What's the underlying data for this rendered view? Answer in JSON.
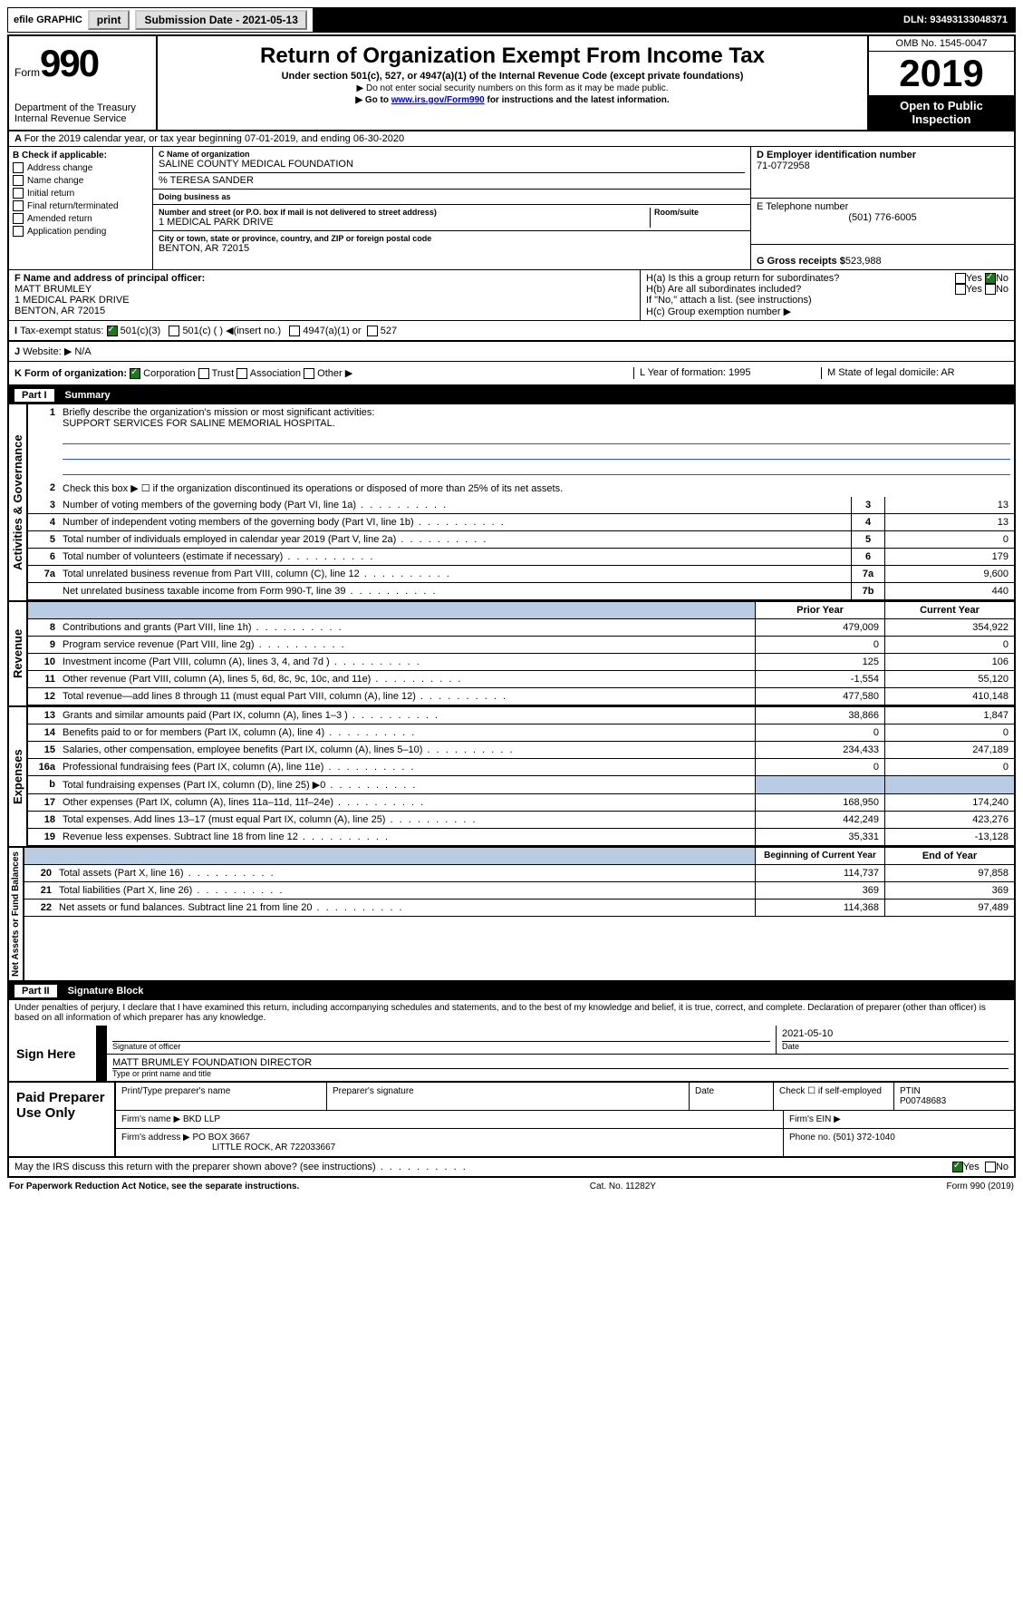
{
  "topbar": {
    "efile": "efile GRAPHIC",
    "print": "print",
    "subdate_label": "Submission Date - 2021-05-13",
    "dln": "DLN: 93493133048371"
  },
  "header": {
    "form": "Form",
    "num": "990",
    "dept": "Department of the Treasury",
    "irs": "Internal Revenue Service",
    "title": "Return of Organization Exempt From Income Tax",
    "sub": "Under section 501(c), 527, or 4947(a)(1) of the Internal Revenue Code (except private foundations)",
    "nossn": "▶ Do not enter social security numbers on this form as it may be made public.",
    "goto": "▶ Go to www.irs.gov/Form990 for instructions and the latest information.",
    "goto_link": "www.irs.gov/Form990",
    "omb": "OMB No. 1545-0047",
    "year": "2019",
    "open": "Open to Public",
    "inspect": "Inspection"
  },
  "rowA": {
    "text": "For the 2019 calendar year, or tax year beginning 07-01-2019",
    "end": ", and ending 06-30-2020"
  },
  "colB": {
    "label": "B Check if applicable:",
    "items": [
      "Address change",
      "Name change",
      "Initial return",
      "Final return/terminated",
      "Amended return",
      "Application pending"
    ]
  },
  "colC": {
    "name_label": "C Name of organization",
    "name": "SALINE COUNTY MEDICAL FOUNDATION",
    "care": "% TERESA SANDER",
    "dba_label": "Doing business as",
    "addr_label": "Number and street (or P.O. box if mail is not delivered to street address)",
    "room": "Room/suite",
    "addr": "1 MEDICAL PARK DRIVE",
    "city_label": "City or town, state or province, country, and ZIP or foreign postal code",
    "city": "BENTON, AR  72015"
  },
  "colD": {
    "label": "D Employer identification number",
    "ein": "71-0772958",
    "tel_label": "E Telephone number",
    "tel": "(501) 776-6005",
    "gross_label": "G Gross receipts $",
    "gross": "523,988"
  },
  "rowF": {
    "label": "F  Name and address of principal officer:",
    "name": "MATT BRUMLEY",
    "addr1": "1 MEDICAL PARK DRIVE",
    "addr2": "BENTON, AR  72015"
  },
  "rowH": {
    "a": "H(a)  Is this a group return for subordinates?",
    "b": "H(b)  Are all subordinates included?",
    "note": "If \"No,\" attach a list. (see instructions)",
    "c": "H(c)  Group exemption number ▶",
    "yes": "Yes",
    "no": "No"
  },
  "rowI": {
    "label": "Tax-exempt status:",
    "o1": "501(c)(3)",
    "o2": "501(c) (  ) ◀(insert no.)",
    "o3": "4947(a)(1) or",
    "o4": "527"
  },
  "rowJ": {
    "label": "Website: ▶",
    "val": "N/A"
  },
  "rowK": {
    "label": "K Form of organization:",
    "o1": "Corporation",
    "o2": "Trust",
    "o3": "Association",
    "o4": "Other ▶",
    "l": "L Year of formation: 1995",
    "m": "M State of legal domicile: AR"
  },
  "part1": {
    "header": "Part I",
    "title": "Summary",
    "q1": "Briefly describe the organization's mission or most significant activities:",
    "q1val": "SUPPORT SERVICES FOR SALINE MEMORIAL HOSPITAL.",
    "q2": "Check this box ▶ ☐  if the organization discontinued its operations or disposed of more than 25% of its net assets.",
    "rows": [
      {
        "n": "3",
        "t": "Number of voting members of the governing body (Part VI, line 1a)",
        "b": "3",
        "v": "13"
      },
      {
        "n": "4",
        "t": "Number of independent voting members of the governing body (Part VI, line 1b)",
        "b": "4",
        "v": "13"
      },
      {
        "n": "5",
        "t": "Total number of individuals employed in calendar year 2019 (Part V, line 2a)",
        "b": "5",
        "v": "0"
      },
      {
        "n": "6",
        "t": "Total number of volunteers (estimate if necessary)",
        "b": "6",
        "v": "179"
      },
      {
        "n": "7a",
        "t": "Total unrelated business revenue from Part VIII, column (C), line 12",
        "b": "7a",
        "v": "9,600"
      },
      {
        "n": "",
        "t": "Net unrelated business taxable income from Form 990-T, line 39",
        "b": "7b",
        "v": "440"
      }
    ],
    "hdr_prior": "Prior Year",
    "hdr_curr": "Current Year",
    "rev": [
      {
        "n": "8",
        "t": "Contributions and grants (Part VIII, line 1h)",
        "p": "479,009",
        "c": "354,922"
      },
      {
        "n": "9",
        "t": "Program service revenue (Part VIII, line 2g)",
        "p": "0",
        "c": "0"
      },
      {
        "n": "10",
        "t": "Investment income (Part VIII, column (A), lines 3, 4, and 7d )",
        "p": "125",
        "c": "106"
      },
      {
        "n": "11",
        "t": "Other revenue (Part VIII, column (A), lines 5, 6d, 8c, 9c, 10c, and 11e)",
        "p": "-1,554",
        "c": "55,120"
      },
      {
        "n": "12",
        "t": "Total revenue—add lines 8 through 11 (must equal Part VIII, column (A), line 12)",
        "p": "477,580",
        "c": "410,148"
      }
    ],
    "exp": [
      {
        "n": "13",
        "t": "Grants and similar amounts paid (Part IX, column (A), lines 1–3 )",
        "p": "38,866",
        "c": "1,847"
      },
      {
        "n": "14",
        "t": "Benefits paid to or for members (Part IX, column (A), line 4)",
        "p": "0",
        "c": "0"
      },
      {
        "n": "15",
        "t": "Salaries, other compensation, employee benefits (Part IX, column (A), lines 5–10)",
        "p": "234,433",
        "c": "247,189"
      },
      {
        "n": "16a",
        "t": "Professional fundraising fees (Part IX, column (A), line 11e)",
        "p": "0",
        "c": "0"
      },
      {
        "n": "b",
        "t": "Total fundraising expenses (Part IX, column (D), line 25) ▶0",
        "p": "",
        "c": "",
        "shade": true
      },
      {
        "n": "17",
        "t": "Other expenses (Part IX, column (A), lines 11a–11d, 11f–24e)",
        "p": "168,950",
        "c": "174,240"
      },
      {
        "n": "18",
        "t": "Total expenses. Add lines 13–17 (must equal Part IX, column (A), line 25)",
        "p": "442,249",
        "c": "423,276"
      },
      {
        "n": "19",
        "t": "Revenue less expenses. Subtract line 18 from line 12",
        "p": "35,331",
        "c": "-13,128"
      }
    ],
    "hdr_beg": "Beginning of Current Year",
    "hdr_end": "End of Year",
    "net": [
      {
        "n": "20",
        "t": "Total assets (Part X, line 16)",
        "p": "114,737",
        "c": "97,858"
      },
      {
        "n": "21",
        "t": "Total liabilities (Part X, line 26)",
        "p": "369",
        "c": "369"
      },
      {
        "n": "22",
        "t": "Net assets or fund balances. Subtract line 21 from line 20",
        "p": "114,368",
        "c": "97,489"
      }
    ],
    "vlabels": {
      "gov": "Activities & Governance",
      "rev": "Revenue",
      "exp": "Expenses",
      "net": "Net Assets or Fund Balances"
    }
  },
  "part2": {
    "header": "Part II",
    "title": "Signature Block",
    "decl": "Under penalties of perjury, I declare that I have examined this return, including accompanying schedules and statements, and to the best of my knowledge and belief, it is true, correct, and complete. Declaration of preparer (other than officer) is based on all information of which preparer has any knowledge."
  },
  "sign": {
    "here": "Sign Here",
    "sig": "Signature of officer",
    "date": "2021-05-10",
    "date_label": "Date",
    "name": "MATT BRUMLEY FOUNDATION DIRECTOR",
    "name_label": "Type or print name and title"
  },
  "paid": {
    "label": "Paid Preparer Use Only",
    "h1": "Print/Type preparer's name",
    "h2": "Preparer's signature",
    "h3": "Date",
    "h4": "Check ☐ if self-employed",
    "h5": "PTIN",
    "ptin": "P00748683",
    "firm_label": "Firm's name    ▶",
    "firm": "BKD LLP",
    "ein_label": "Firm's EIN ▶",
    "addr_label": "Firm's address ▶",
    "addr1": "PO BOX 3667",
    "addr2": "LITTLE ROCK, AR  722033667",
    "phone_label": "Phone no.",
    "phone": "(501) 372-1040"
  },
  "footer": {
    "q": "May the IRS discuss this return with the preparer shown above? (see instructions)",
    "yes": "Yes",
    "no": "No",
    "pra": "For Paperwork Reduction Act Notice, see the separate instructions.",
    "cat": "Cat. No. 11282Y",
    "form": "Form 990 (2019)"
  }
}
